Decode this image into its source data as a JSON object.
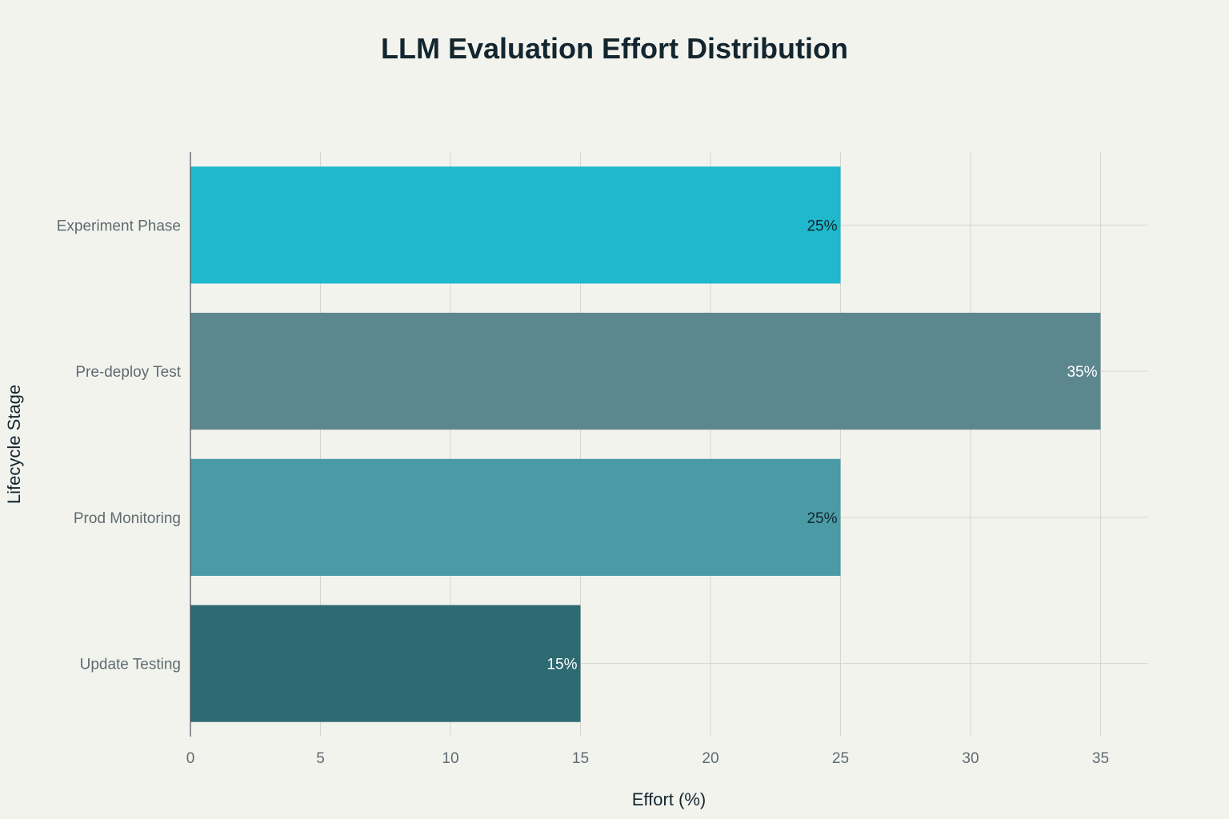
{
  "chart_data": {
    "type": "bar",
    "orientation": "horizontal",
    "title": "LLM Evaluation Effort Distribution",
    "xlabel": "Effort (%)",
    "ylabel": "Lifecycle Stage",
    "categories": [
      "Experiment Phase",
      "Pre-deploy Test",
      "Prod Monitoring",
      "Update Testing"
    ],
    "values": [
      25,
      35,
      25,
      15
    ],
    "data_labels": [
      "25%",
      "35%",
      "25%",
      "15%"
    ],
    "bar_colors": [
      "#1fb8cd",
      "#5d878f",
      "#4a9ba6",
      "#2e6a72"
    ],
    "label_colors": [
      "#13262f",
      "#ffffff",
      "#13262f",
      "#ffffff"
    ],
    "xlim": [
      0,
      36.8
    ],
    "xticks": [
      0,
      5,
      10,
      15,
      20,
      25,
      30,
      35
    ],
    "grid": true,
    "legend": "none"
  }
}
